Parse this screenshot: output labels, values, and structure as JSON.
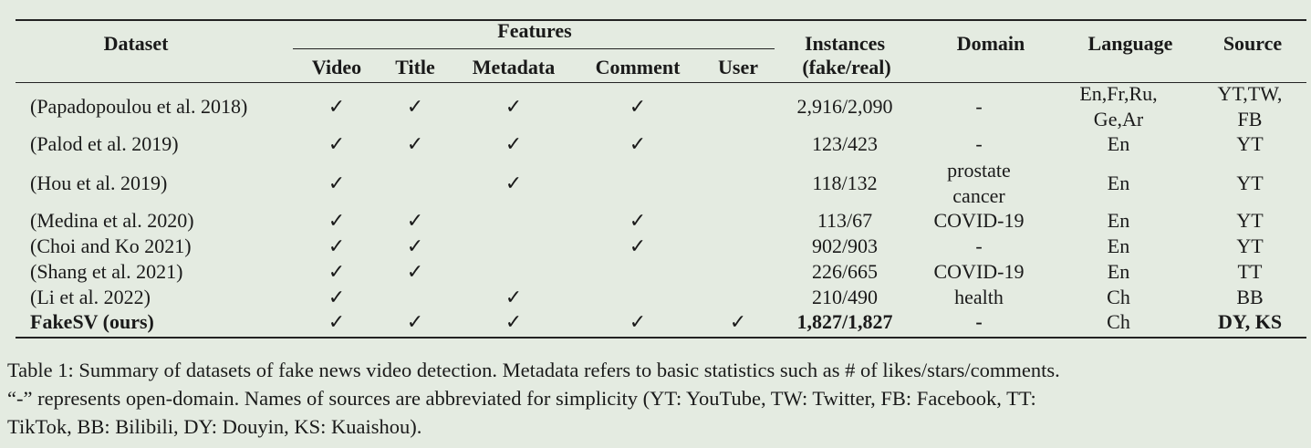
{
  "table": {
    "headers": {
      "dataset": "Dataset",
      "features": "Features",
      "video": "Video",
      "title": "Title",
      "metadata": "Metadata",
      "comment": "Comment",
      "user": "User",
      "instances": "Instances",
      "instances_sub": "(fake/real)",
      "domain": "Domain",
      "language": "Language",
      "source": "Source"
    },
    "check_symbol": "✓",
    "rows": [
      {
        "dataset": "(Papadopoulou et al. 2018)",
        "video": true,
        "title": true,
        "metadata": true,
        "comment": true,
        "user": false,
        "instances": "2,916/2,090",
        "domain": "-",
        "language": "En,Fr,Ru,\nGe,Ar",
        "source": "YT,TW,\nFB",
        "bold": false
      },
      {
        "dataset": "(Palod et al. 2019)",
        "video": true,
        "title": true,
        "metadata": true,
        "comment": true,
        "user": false,
        "instances": "123/423",
        "domain": "-",
        "language": "En",
        "source": "YT",
        "bold": false
      },
      {
        "dataset": "(Hou et al. 2019)",
        "video": true,
        "title": false,
        "metadata": true,
        "comment": false,
        "user": false,
        "instances": "118/132",
        "domain": "prostate\ncancer",
        "language": "En",
        "source": "YT",
        "bold": false
      },
      {
        "dataset": "(Medina et al. 2020)",
        "video": true,
        "title": true,
        "metadata": false,
        "comment": true,
        "user": false,
        "instances": "113/67",
        "domain": "COVID-19",
        "language": "En",
        "source": "YT",
        "bold": false
      },
      {
        "dataset": "(Choi and Ko 2021)",
        "video": true,
        "title": true,
        "metadata": false,
        "comment": true,
        "user": false,
        "instances": "902/903",
        "domain": "-",
        "language": "En",
        "source": "YT",
        "bold": false
      },
      {
        "dataset": "(Shang et al. 2021)",
        "video": true,
        "title": true,
        "metadata": false,
        "comment": false,
        "user": false,
        "instances": "226/665",
        "domain": "COVID-19",
        "language": "En",
        "source": "TT",
        "bold": false
      },
      {
        "dataset": "(Li et al. 2022)",
        "video": true,
        "title": false,
        "metadata": true,
        "comment": false,
        "user": false,
        "instances": "210/490",
        "domain": "health",
        "language": "Ch",
        "source": "BB",
        "bold": false
      },
      {
        "dataset": "FakeSV (ours)",
        "video": true,
        "title": true,
        "metadata": true,
        "comment": true,
        "user": true,
        "instances": "1,827/1,827",
        "domain": "-",
        "language": "Ch",
        "source": "DY, KS",
        "bold": true
      }
    ]
  },
  "caption": {
    "line1": "Table 1: Summary of datasets of fake news video detection. Metadata refers to basic statistics such as # of likes/stars/comments.",
    "line2": "“-” represents open-domain. Names of sources are abbreviated for simplicity (YT: YouTube, TW: Twitter, FB: Facebook, TT:",
    "line3": "TikTok, BB: Bilibili, DY: Douyin, KS: Kuaishou)."
  }
}
